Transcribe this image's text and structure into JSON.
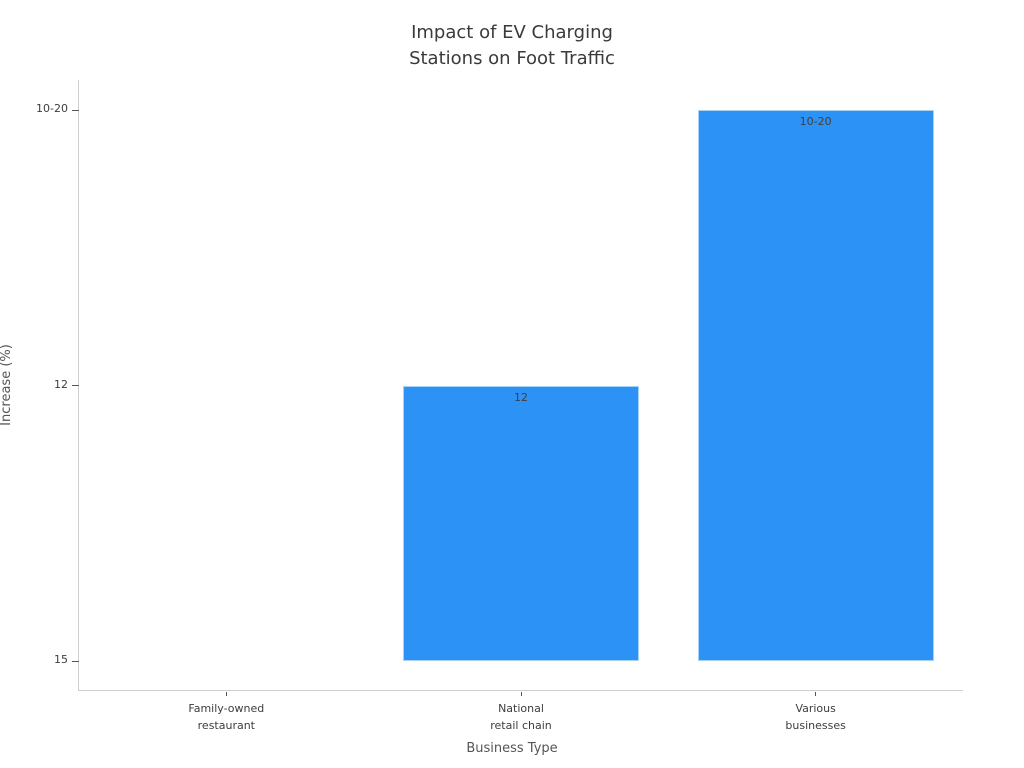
{
  "chart_data": {
    "type": "bar",
    "title": "Impact of EV Charging\nStations on Foot Traffic",
    "xlabel": "Business Type",
    "ylabel": "Increase (%)",
    "categories": [
      "Family-owned\nrestaurant",
      "National\nretail chain",
      "Various\nbusinesses"
    ],
    "values": [
      "15",
      "12",
      "10-20"
    ],
    "y_axis_type": "categorical",
    "y_axis_categories": [
      "15",
      "12",
      "10-20"
    ],
    "bar_value_labels": [
      "",
      "12",
      "10-20"
    ],
    "grid": false,
    "legend": null,
    "colors": {
      "background": "#ffffff",
      "bar": "#2d92f5",
      "bar_edge": "#a9d3f5",
      "bar_label_text": "#3f3f3f",
      "title_text": "#3a3a3a",
      "tick_text": "#3d3d3d",
      "axis_label_text": "#555555",
      "spine": "#cfcfcf",
      "tick_mark": "#555555"
    }
  }
}
